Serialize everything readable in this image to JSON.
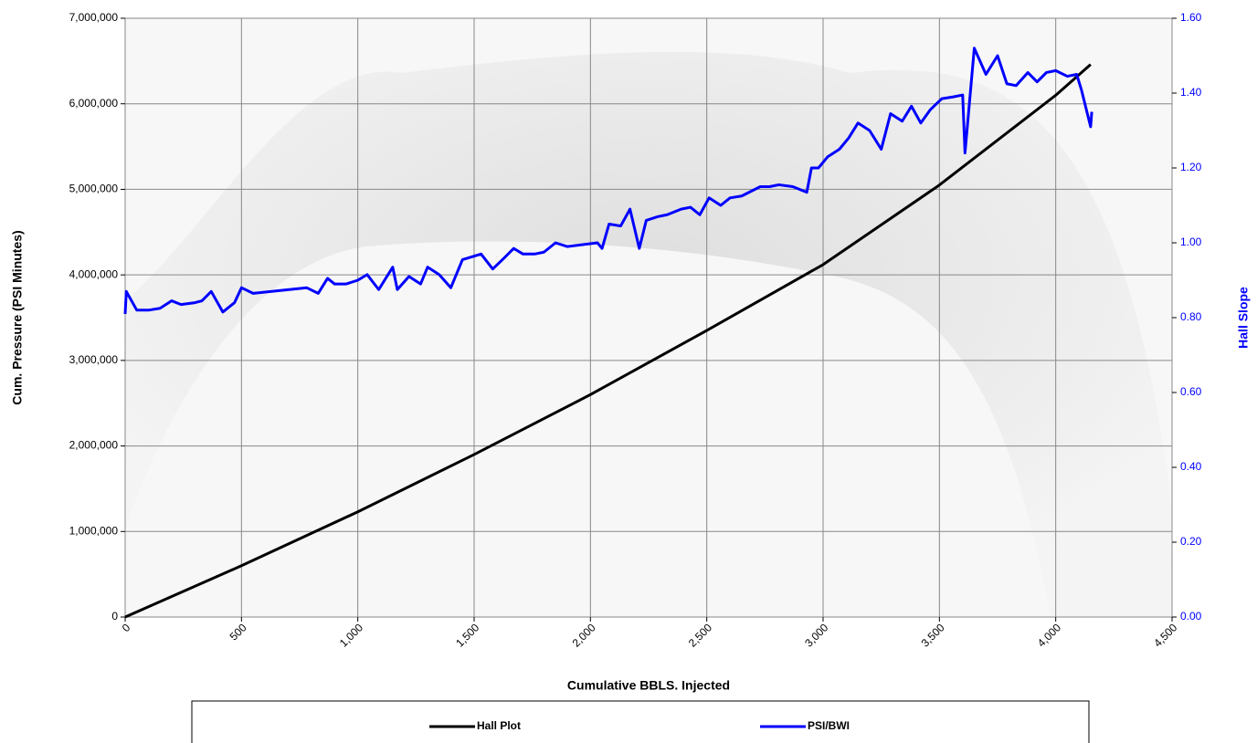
{
  "chart_data": {
    "type": "line",
    "xlabel": "Cumulative BBLS. Injected",
    "ylabel": "Cum. Pressure (PSI Minutes)",
    "y2label": "Hall Slope",
    "xlim": [
      0,
      4500
    ],
    "xticks": [
      0,
      500,
      {
        "value": 1000,
        "label": "1,000"
      },
      {
        "value": 1500,
        "label": "1,500"
      },
      {
        "value": 2000,
        "label": "2,000"
      },
      {
        "value": 2500,
        "label": "2,500"
      },
      {
        "value": 3000,
        "label": "3,000"
      },
      {
        "value": 3500,
        "label": "3,500"
      },
      {
        "value": 4000,
        "label": "4,000"
      },
      {
        "value": 4500,
        "label": "4,500"
      }
    ],
    "ylim": [
      0,
      7000000
    ],
    "yticks": [
      0,
      {
        "value": 1000000,
        "label": "1,000,000"
      },
      {
        "value": 2000000,
        "label": "2,000,000"
      },
      {
        "value": 3000000,
        "label": "3,000,000"
      },
      {
        "value": 4000000,
        "label": "4,000,000"
      },
      {
        "value": 5000000,
        "label": "5,000,000"
      },
      {
        "value": 6000000,
        "label": "6,000,000"
      },
      {
        "value": 7000000,
        "label": "7,000,000"
      }
    ],
    "y2lim": [
      0,
      1.6
    ],
    "y2ticks": [
      {
        "value": 0,
        "label": "0.00"
      },
      {
        "value": 0.2,
        "label": "0.20"
      },
      {
        "value": 0.4,
        "label": "0.40"
      },
      {
        "value": 0.6,
        "label": "0.60"
      },
      {
        "value": 0.8,
        "label": "0.80"
      },
      {
        "value": 1.0,
        "label": "1.00"
      },
      {
        "value": 1.2,
        "label": "1.20"
      },
      {
        "value": 1.4,
        "label": "1.40"
      },
      {
        "value": 1.6,
        "label": "1.60"
      }
    ],
    "y2color": "#0000ff",
    "grid": true,
    "legend": "bottom",
    "series": [
      {
        "name": "Hall Plot",
        "color": "#000000",
        "x": [
          0,
          500,
          1000,
          1500,
          2000,
          2500,
          3000,
          3500,
          4000,
          4150
        ],
        "values": [
          0,
          600000,
          1230000,
          1900000,
          2600000,
          3350000,
          4120000,
          5050000,
          6100000,
          6460000
        ]
      },
      {
        "name": "PSI/BWI",
        "color": "#0000ff",
        "axis": "y2",
        "x": [
          0,
          5,
          50,
          100,
          150,
          200,
          240,
          300,
          330,
          370,
          420,
          470,
          500,
          550,
          780,
          830,
          870,
          900,
          950,
          1000,
          1040,
          1090,
          1150,
          1170,
          1220,
          1270,
          1300,
          1350,
          1400,
          1450,
          1530,
          1580,
          1630,
          1670,
          1710,
          1760,
          1800,
          1850,
          1900,
          2030,
          2050,
          2080,
          2130,
          2170,
          2210,
          2240,
          2290,
          2330,
          2390,
          2430,
          2470,
          2510,
          2560,
          2600,
          2650,
          2730,
          2770,
          2810,
          2870,
          2930,
          2950,
          2980,
          3020,
          3070,
          3110,
          3150,
          3200,
          3250,
          3290,
          3340,
          3380,
          3420,
          3460,
          3510,
          3560,
          3600,
          3610,
          3650,
          3700,
          3750,
          3790,
          3830,
          3880,
          3920,
          3960,
          4000,
          4050,
          4090,
          4110,
          4150,
          4155
        ],
        "values": [
          0.81,
          0.87,
          0.82,
          0.82,
          0.825,
          0.845,
          0.835,
          0.84,
          0.845,
          0.87,
          0.815,
          0.84,
          0.88,
          0.865,
          0.88,
          0.865,
          0.905,
          0.89,
          0.89,
          0.9,
          0.915,
          0.875,
          0.935,
          0.875,
          0.91,
          0.89,
          0.935,
          0.915,
          0.88,
          0.955,
          0.97,
          0.93,
          0.96,
          0.985,
          0.97,
          0.97,
          0.975,
          1.0,
          0.99,
          1.0,
          0.985,
          1.05,
          1.045,
          1.09,
          0.985,
          1.06,
          1.07,
          1.075,
          1.09,
          1.095,
          1.075,
          1.12,
          1.1,
          1.12,
          1.125,
          1.15,
          1.15,
          1.155,
          1.15,
          1.135,
          1.2,
          1.2,
          1.23,
          1.25,
          1.28,
          1.32,
          1.3,
          1.25,
          1.345,
          1.325,
          1.365,
          1.32,
          1.355,
          1.385,
          1.39,
          1.395,
          1.24,
          1.52,
          1.45,
          1.5,
          1.425,
          1.42,
          1.455,
          1.43,
          1.455,
          1.46,
          1.445,
          1.45,
          1.41,
          1.31,
          1.35
        ]
      }
    ]
  }
}
